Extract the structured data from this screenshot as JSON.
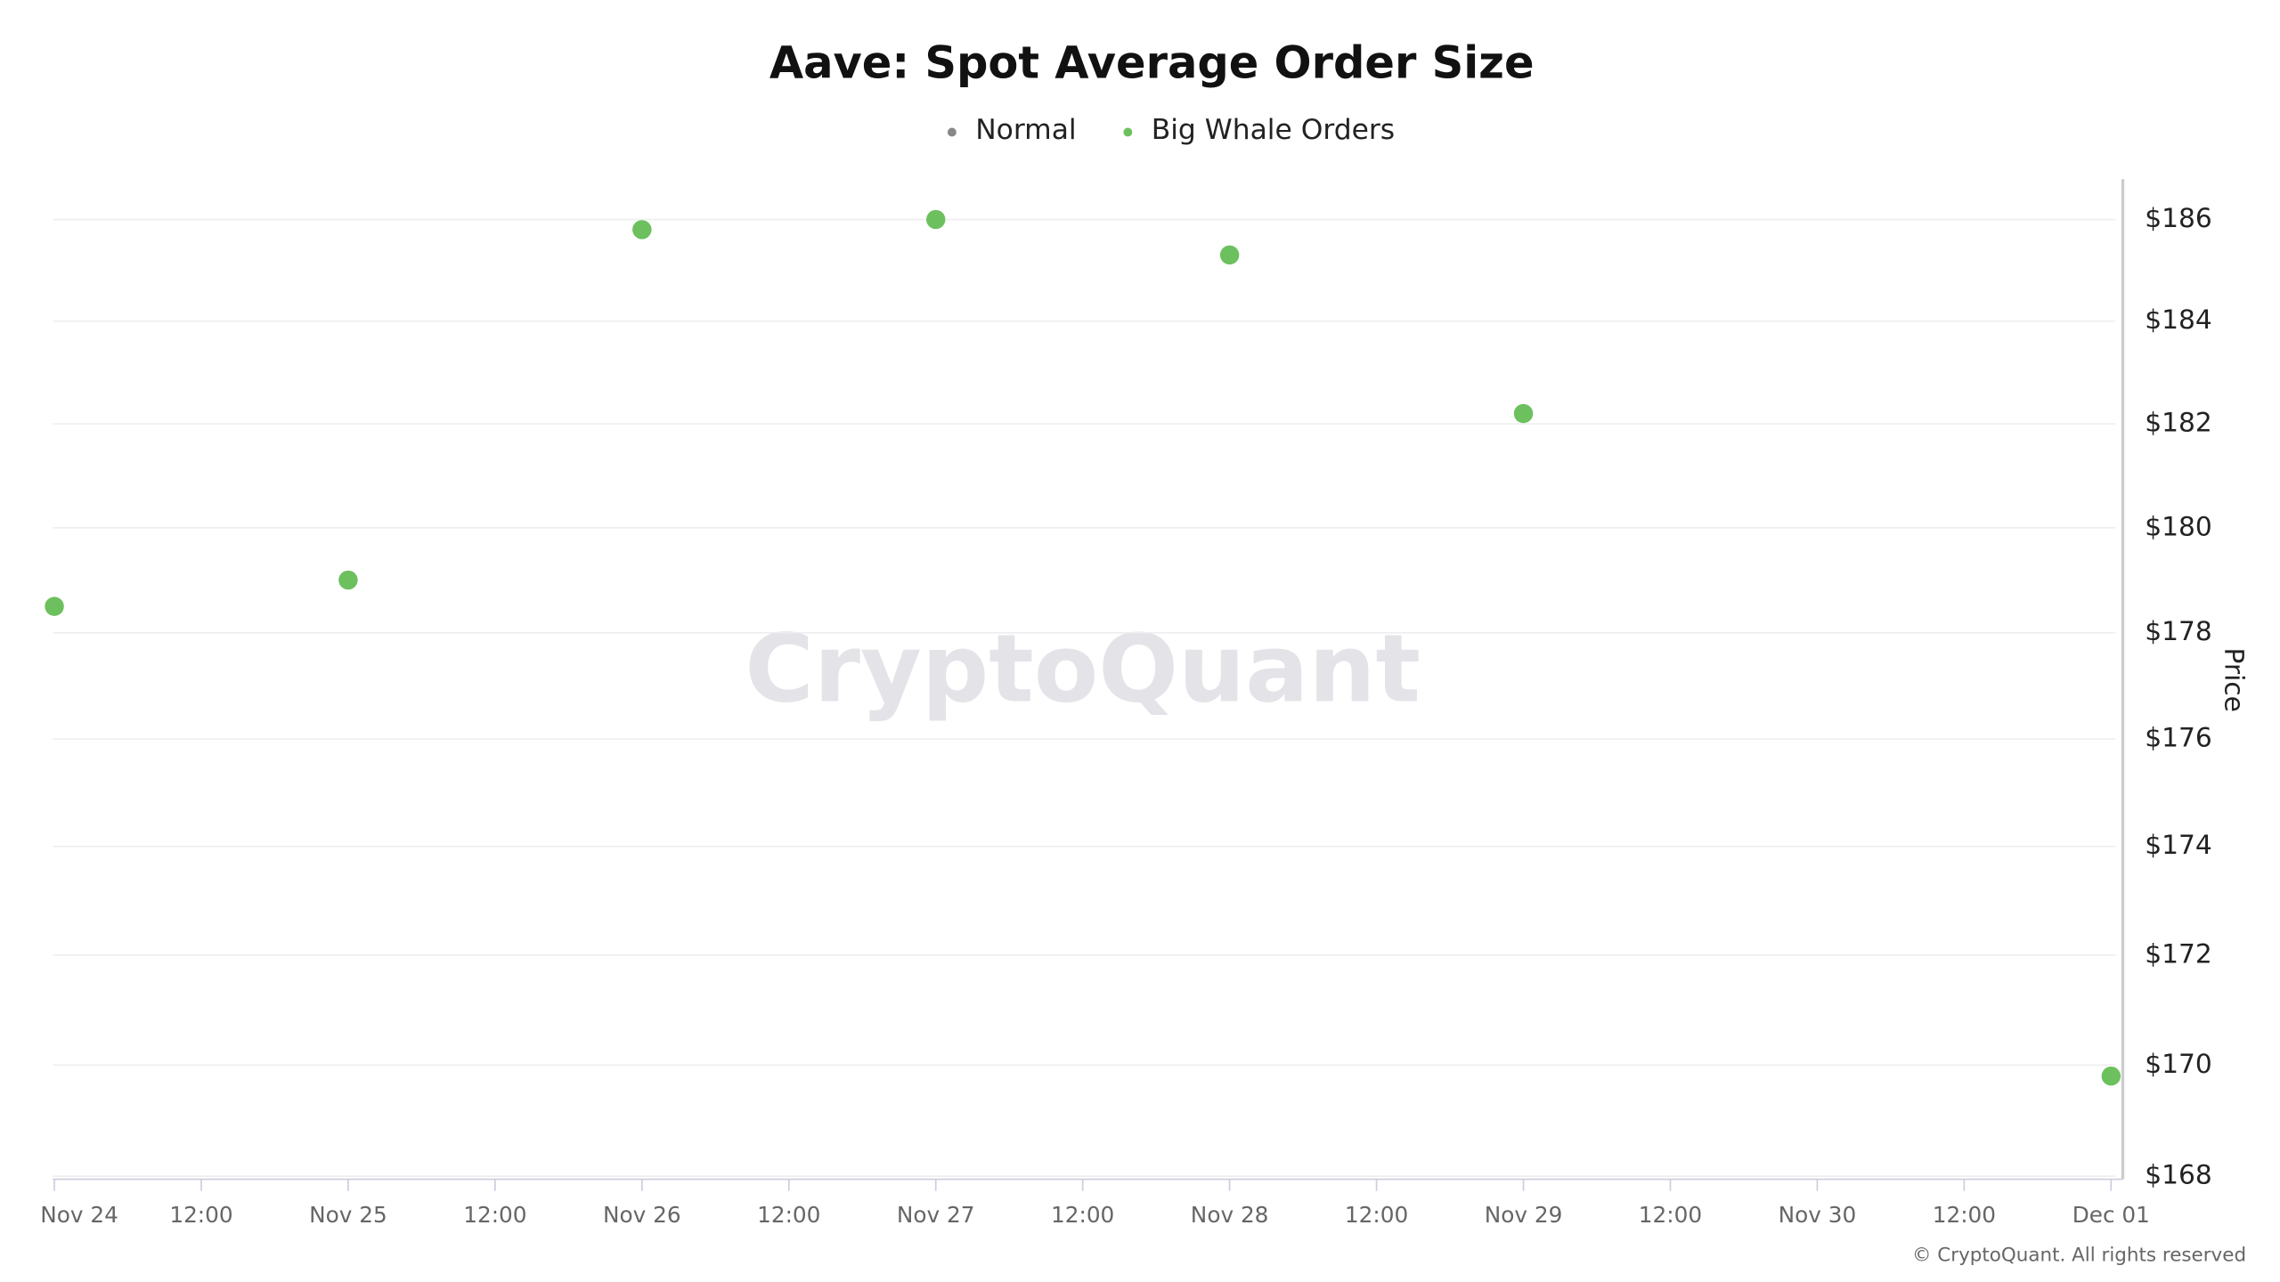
{
  "chart_data": {
    "type": "scatter",
    "title": "Aave: Spot Average Order Size",
    "y_label": "Price",
    "watermark": "CryptoQuant",
    "credit": "© CryptoQuant. All rights reserved",
    "categories": [
      "Nov 24",
      "12:00",
      "Nov 25",
      "12:00",
      "Nov 26",
      "12:00",
      "Nov 27",
      "12:00",
      "Nov 28",
      "12:00",
      "Nov 29",
      "12:00",
      "Nov 30",
      "12:00",
      "Dec 01"
    ],
    "series": [
      {
        "name": "Normal",
        "color": "#888888",
        "values": [
          null,
          null,
          null,
          null,
          null,
          null,
          null,
          null,
          null,
          null,
          null,
          null,
          null,
          null,
          null
        ]
      },
      {
        "name": "Big Whale Orders",
        "color": "#6cc05e",
        "values": [
          178.5,
          null,
          179.0,
          null,
          185.8,
          null,
          186.0,
          null,
          185.3,
          null,
          182.2,
          null,
          null,
          null,
          169.8
        ]
      }
    ],
    "ylim": [
      168,
      186.8
    ],
    "log_scale": true,
    "grid": true,
    "yticks": [
      {
        "value": 168,
        "label": "$168"
      },
      {
        "value": 170,
        "label": "$170"
      },
      {
        "value": 172,
        "label": "$172"
      },
      {
        "value": 174,
        "label": "$174"
      },
      {
        "value": 176,
        "label": "$176"
      },
      {
        "value": 178,
        "label": "$178"
      },
      {
        "value": 180,
        "label": "$180"
      },
      {
        "value": 182,
        "label": "$182"
      },
      {
        "value": 184,
        "label": "$184"
      },
      {
        "value": 186,
        "label": "$186"
      }
    ]
  }
}
